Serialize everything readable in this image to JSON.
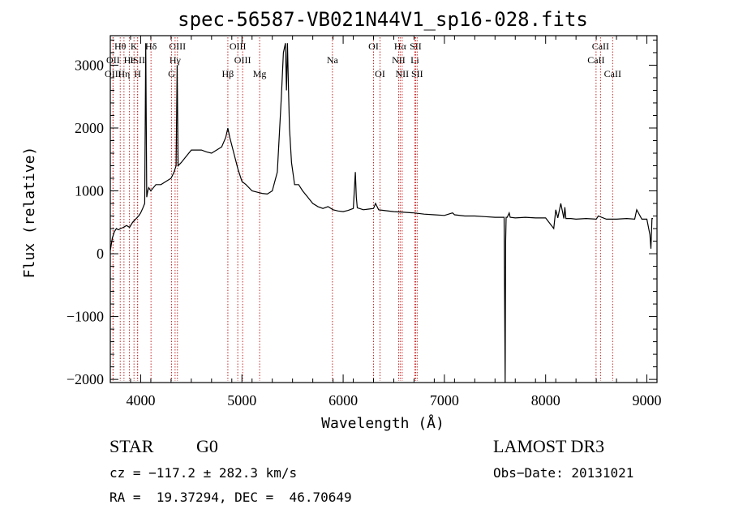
{
  "chart_data": {
    "type": "line",
    "title": "spec-56587-VB021N44V1_sp16-028.fits",
    "xlabel": "Wavelength (Å)",
    "ylabel": "Flux (relative)",
    "xlim": [
      3700,
      9100
    ],
    "ylim": [
      -2050,
      3470
    ],
    "xticks": [
      4000,
      5000,
      6000,
      7000,
      8000,
      9000
    ],
    "yticks": [
      -2000,
      -1000,
      0,
      1000,
      2000,
      3000
    ],
    "xtick_labels": [
      "4000",
      "5000",
      "6000",
      "7000",
      "8000",
      "9000"
    ],
    "ytick_labels": [
      "−2000",
      "−1000",
      "0",
      "1000",
      "2000",
      "3000"
    ],
    "spectrum": {
      "x": [
        3700,
        3720,
        3740,
        3760,
        3780,
        3800,
        3830,
        3860,
        3890,
        3920,
        3950,
        3980,
        4000,
        4020,
        4040,
        4050,
        4060,
        4070,
        4080,
        4100,
        4150,
        4200,
        4250,
        4300,
        4330,
        4350,
        4360,
        4370,
        4400,
        4450,
        4500,
        4550,
        4600,
        4650,
        4700,
        4750,
        4800,
        4840,
        4861,
        4880,
        4920,
        4960,
        5000,
        5040,
        5100,
        5150,
        5200,
        5250,
        5300,
        5350,
        5390,
        5410,
        5430,
        5440,
        5450,
        5460,
        5470,
        5490,
        5520,
        5560,
        5600,
        5650,
        5700,
        5750,
        5800,
        5850,
        5900,
        5950,
        6000,
        6050,
        6100,
        6120,
        6130,
        6140,
        6160,
        6200,
        6250,
        6300,
        6320,
        6350,
        6400,
        6500,
        6600,
        6700,
        6800,
        6900,
        7000,
        7080,
        7100,
        7200,
        7300,
        7400,
        7500,
        7550,
        7590,
        7600,
        7605,
        7610,
        7620,
        7640,
        7650,
        7700,
        7800,
        7900,
        8000,
        8080,
        8100,
        8120,
        8150,
        8180,
        8190,
        8200,
        8250,
        8300,
        8400,
        8500,
        8520,
        8600,
        8700,
        8800,
        8880,
        8900,
        8950,
        9000,
        9030,
        9040,
        9050,
        9060
      ],
      "y": [
        50,
        250,
        350,
        400,
        380,
        400,
        420,
        450,
        420,
        500,
        550,
        600,
        650,
        720,
        800,
        3350,
        900,
        1000,
        1050,
        1000,
        1100,
        1100,
        1150,
        1200,
        1300,
        1400,
        3000,
        1400,
        1450,
        1550,
        1650,
        1650,
        1650,
        1620,
        1600,
        1650,
        1700,
        1850,
        2000,
        1850,
        1600,
        1350,
        1150,
        1100,
        1000,
        980,
        960,
        950,
        1000,
        1300,
        2500,
        3200,
        3350,
        2600,
        3350,
        2600,
        2000,
        1450,
        1100,
        1100,
        1000,
        900,
        800,
        750,
        720,
        750,
        700,
        680,
        670,
        690,
        720,
        1300,
        900,
        730,
        720,
        700,
        710,
        720,
        800,
        700,
        690,
        670,
        660,
        650,
        630,
        620,
        610,
        650,
        620,
        600,
        600,
        590,
        580,
        580,
        580,
        -2050,
        200,
        580,
        580,
        650,
        580,
        570,
        580,
        570,
        570,
        400,
        700,
        570,
        800,
        560,
        740,
        560,
        560,
        550,
        560,
        550,
        600,
        550,
        550,
        560,
        550,
        700,
        550,
        550,
        300,
        80,
        560,
        560
      ]
    },
    "line_markers": [
      {
        "name": "Hθ",
        "x": 3798,
        "row": 1
      },
      {
        "name": "OII",
        "x": 3727,
        "row": 2
      },
      {
        "name": "OIII",
        "x": 3727,
        "row": 3
      },
      {
        "name": "He",
        "x": 3889,
        "row": 2
      },
      {
        "name": "Hη",
        "x": 3835,
        "row": 3
      },
      {
        "name": "K",
        "x": 3934,
        "row": 1
      },
      {
        "name": "ISII",
        "x": 3970,
        "row": 2
      },
      {
        "name": "H",
        "x": 3969,
        "row": 3
      },
      {
        "name": "Hδ",
        "x": 4102,
        "row": 1
      },
      {
        "name": "OIII",
        "x": 4363,
        "row": 1
      },
      {
        "name": "Hγ",
        "x": 4340,
        "row": 2
      },
      {
        "name": "G",
        "x": 4305,
        "row": 3
      },
      {
        "name": "Hβ",
        "x": 4861,
        "row": 3
      },
      {
        "name": "OIII",
        "x": 4959,
        "row": 1
      },
      {
        "name": "OIII",
        "x": 5007,
        "row": 2
      },
      {
        "name": "Mg",
        "x": 5175,
        "row": 3
      },
      {
        "name": "Na",
        "x": 5894,
        "row": 2
      },
      {
        "name": "OI",
        "x": 6300,
        "row": 1
      },
      {
        "name": "OI",
        "x": 6364,
        "row": 3
      },
      {
        "name": "Hα",
        "x": 6563,
        "row": 1
      },
      {
        "name": "SII",
        "x": 6716,
        "row": 1
      },
      {
        "name": "NII",
        "x": 6548,
        "row": 2
      },
      {
        "name": "Li",
        "x": 6708,
        "row": 2
      },
      {
        "name": "NII",
        "x": 6583,
        "row": 3
      },
      {
        "name": "SII",
        "x": 6731,
        "row": 3
      },
      {
        "name": "CaII",
        "x": 8542,
        "row": 1
      },
      {
        "name": "CaII",
        "x": 8498,
        "row": 2
      },
      {
        "name": "CaII",
        "x": 8662,
        "row": 3
      }
    ]
  },
  "info": {
    "class_label": "STAR",
    "subclass": "G0",
    "survey": "LAMOST DR3",
    "cz": "cz = −117.2 ± 282.3 km/s",
    "obs_date": "Obs−Date: 20131021",
    "radec": "RA =  19.37294, DEC =  46.70649"
  }
}
